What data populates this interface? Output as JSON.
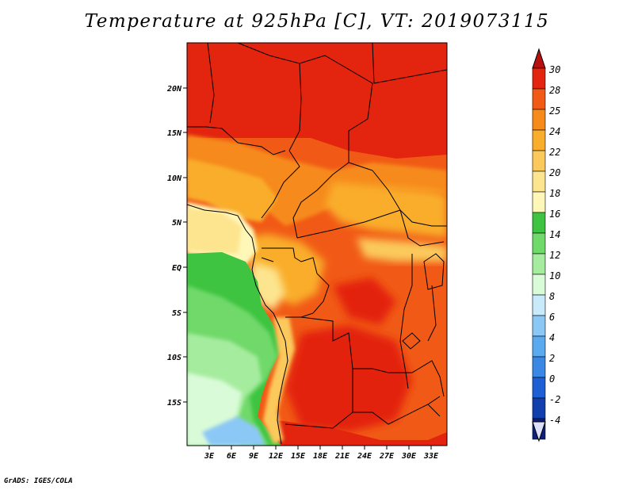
{
  "title": "Temperature at 925hPa [C], VT: 2019073115",
  "credit": "GrADS: IGES/COLA",
  "axes": {
    "lon_ticks": [
      "3E",
      "6E",
      "9E",
      "12E",
      "15E",
      "18E",
      "21E",
      "24E",
      "27E",
      "30E",
      "33E"
    ],
    "lat_ticks": [
      "20N",
      "15N",
      "10N",
      "5N",
      "EQ",
      "5S",
      "10S",
      "15S"
    ]
  },
  "colorbar": {
    "labels": [
      "30",
      "28",
      "25",
      "24",
      "22",
      "20",
      "18",
      "16",
      "14",
      "12",
      "10",
      "8",
      "6",
      "4",
      "2",
      "0",
      "-2",
      "-4"
    ],
    "colors": [
      "#e3240f",
      "#f15a16",
      "#f68a1a",
      "#f9ad2c",
      "#fbc95b",
      "#fde58f",
      "#fff7b8",
      "#3fc441",
      "#6fd96a",
      "#a6ec9f",
      "#d9fbd8",
      "#c8eafb",
      "#8cc8f6",
      "#5aaaf0",
      "#3a88e4",
      "#1f5fd4",
      "#113fac",
      "#0c1f7a"
    ],
    "top_arrow_color": "#b80f0f",
    "bottom_arrow_color": "#dde0fa"
  }
}
